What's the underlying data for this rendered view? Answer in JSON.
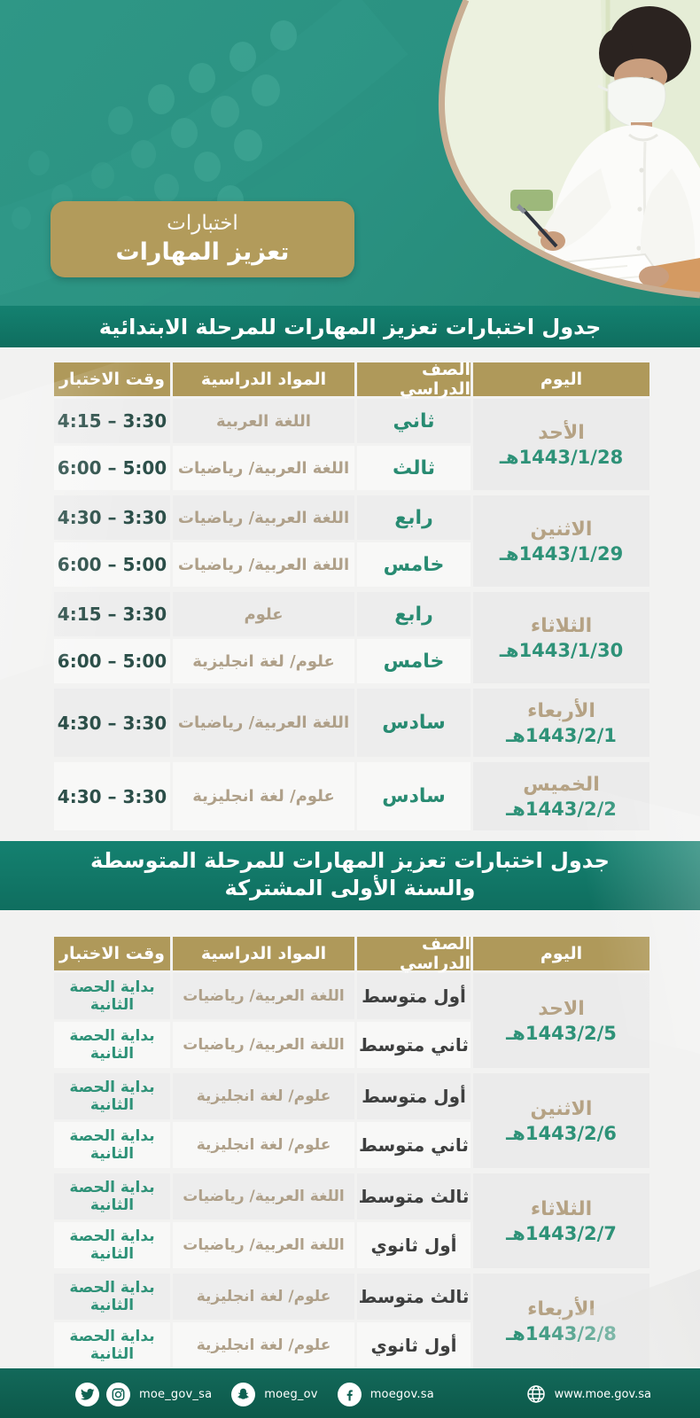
{
  "header": {
    "badge_line1": "اختبارات",
    "badge_line2": "تعزيز المهارات"
  },
  "sections": [
    {
      "title_lines": [
        "جدول اختبارات تعزيز المهارات للمرحلة الابتدائية"
      ],
      "columns": [
        "اليوم",
        "الصف الدراسي",
        "المواد الدراسية",
        "وقت الاختبار"
      ],
      "groups": [
        {
          "day": "الأحد",
          "date": "1443/1/28هـ",
          "rows": [
            {
              "grade": "ثاني",
              "subjects": "اللغة العربية",
              "time": "4:15 – 3:30"
            },
            {
              "grade": "ثالث",
              "subjects": "اللغة العربية/ رياضيات",
              "time": "6:00 – 5:00"
            }
          ]
        },
        {
          "day": "الاثنين",
          "date": "1443/1/29هـ",
          "rows": [
            {
              "grade": "رابع",
              "subjects": "اللغة العربية/ رياضيات",
              "time": "4:30 – 3:30"
            },
            {
              "grade": "خامس",
              "subjects": "اللغة العربية/ رياضيات",
              "time": "6:00 – 5:00"
            }
          ]
        },
        {
          "day": "الثلاثاء",
          "date": "1443/1/30هـ",
          "rows": [
            {
              "grade": "رابع",
              "subjects": "علوم",
              "time": "4:15 – 3:30"
            },
            {
              "grade": "خامس",
              "subjects": "علوم/ لغة انجليزية",
              "time": "6:00 – 5:00"
            }
          ]
        },
        {
          "day": "الأربعاء",
          "date": "1443/2/1هـ",
          "rows": [
            {
              "grade": "سادس",
              "subjects": "اللغة العربية/ رياضيات",
              "time": "4:30 – 3:30"
            }
          ]
        },
        {
          "day": "الخميس",
          "date": "1443/2/2هـ",
          "rows": [
            {
              "grade": "سادس",
              "subjects": "علوم/ لغة انجليزية",
              "time": "4:30 – 3:30"
            }
          ]
        }
      ]
    },
    {
      "title_lines": [
        "جدول اختبارات تعزيز المهارات للمرحلة المتوسطة",
        "والسنة الأولى المشتركة"
      ],
      "columns": [
        "اليوم",
        "الصف الدراسي",
        "المواد الدراسية",
        "وقت الاختبار"
      ],
      "groups": [
        {
          "day": "الاحد",
          "date": "1443/2/5هـ",
          "rows": [
            {
              "grade": "أول متوسط",
              "subjects": "اللغة العربية/ رياضيات",
              "time": "بداية الحصة الثانية"
            },
            {
              "grade": "ثاني متوسط",
              "subjects": "اللغة العربية/ رياضيات",
              "time": "بداية الحصة الثانية"
            }
          ]
        },
        {
          "day": "الاثنين",
          "date": "1443/2/6هـ",
          "rows": [
            {
              "grade": "أول متوسط",
              "subjects": "علوم/ لغة انجليزية",
              "time": "بداية الحصة الثانية"
            },
            {
              "grade": "ثاني متوسط",
              "subjects": "علوم/ لغة انجليزية",
              "time": "بداية الحصة الثانية"
            }
          ]
        },
        {
          "day": "الثلاثاء",
          "date": "1443/2/7هـ",
          "rows": [
            {
              "grade": "ثالث متوسط",
              "subjects": "اللغة العربية/ رياضيات",
              "time": "بداية الحصة الثانية"
            },
            {
              "grade": "أول ثانوي",
              "subjects": "اللغة العربية/ رياضيات",
              "time": "بداية الحصة الثانية"
            }
          ]
        },
        {
          "day": "الأربعاء",
          "date": "1443/2/8هـ",
          "rows": [
            {
              "grade": "ثالث متوسط",
              "subjects": "علوم/ لغة انجليزية",
              "time": "بداية الحصة الثانية"
            },
            {
              "grade": "أول ثانوي",
              "subjects": "علوم/ لغة انجليزية",
              "time": "بداية الحصة الثانية"
            }
          ]
        }
      ]
    }
  ],
  "footer": {
    "twitter_instagram_handle": "moe_gov_sa",
    "snapchat_handle": "moeg_ov",
    "facebook_handle": "moegov.sa",
    "website": "www.moe.gov.sa",
    "icons": [
      "twitter-icon",
      "instagram-icon",
      "snapchat-icon",
      "facebook-icon",
      "globe-icon"
    ]
  },
  "colors": {
    "header_green": "#2A9181",
    "band_green": "#12806C",
    "badge_gold": "#B29B5B",
    "table_header_gold": "#AF995A",
    "day_name_tan": "#B5A284",
    "date_green": "#2E9278",
    "grade_green": "#288B72",
    "subject_tan": "#AFA089",
    "time_dark": "#2C4F49",
    "footer_green": "#0D5F50"
  }
}
